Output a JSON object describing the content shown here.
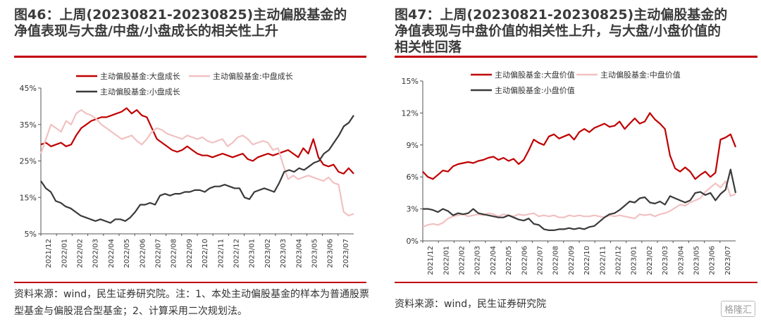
{
  "chart_data": [
    {
      "type": "line",
      "title": "图46：上周(20230821-20230825)主动偏股基金的\n净值表现与大盘/中盘/小盘成长的相关性上升",
      "note": "资料来源：wind，民生证券研究院。注：1、本处主动偏股基金的样本为普通股票型基金与偏股混合型基金；2、计算采用二次规划法。",
      "ylim": [
        5,
        45
      ],
      "yticks": [
        "5%",
        "15%",
        "25%",
        "35%",
        "45%"
      ],
      "ytick_values": [
        5,
        15,
        25,
        35,
        45
      ],
      "xticks": [
        "2021/12",
        "2022/01",
        "2022/02",
        "2022/03",
        "2022/04",
        "2022/05",
        "2022/06",
        "2022/07",
        "2022/08",
        "2022/09",
        "2022/10",
        "2022/11",
        "2022/12",
        "2023/01",
        "2023/02",
        "2023/03",
        "2023/04",
        "2023/05",
        "2023/06",
        "2023/07"
      ],
      "legend": "top",
      "series": [
        {
          "name": "主动偏股基金:大盘成长",
          "color": "#c00000",
          "values": [
            29.5,
            30,
            29,
            29.5,
            30,
            29,
            29.5,
            32,
            34,
            35,
            36,
            36.5,
            37,
            37,
            37.5,
            38,
            38.5,
            39.5,
            38,
            39,
            37.5,
            37,
            34,
            31,
            30,
            29,
            28,
            27.5,
            28,
            29,
            28,
            27,
            26.5,
            26.5,
            26,
            26.5,
            27,
            26.5,
            26,
            26.5,
            27,
            25.5,
            25,
            26,
            26.5,
            27,
            26.5,
            27,
            27.5,
            28,
            27,
            26,
            28.5,
            27,
            31,
            26,
            24,
            23.5,
            24,
            22,
            21.5,
            23,
            21.5
          ]
        },
        {
          "name": "主动偏股基金:中盘成长",
          "color": "#f2c1c1",
          "values": [
            27,
            31,
            35,
            34,
            33,
            36,
            35,
            38,
            39,
            38,
            37.5,
            36.5,
            35,
            34,
            33,
            32,
            31,
            31.5,
            32,
            30.5,
            29.5,
            31,
            33,
            34,
            33.5,
            32.5,
            32,
            31.5,
            31,
            32,
            31.5,
            31,
            31.5,
            30.5,
            30,
            30.5,
            31,
            29,
            30,
            31.5,
            32,
            31,
            29.5,
            30,
            30.5,
            30,
            28,
            28.5,
            24,
            20,
            21,
            20,
            20.5,
            21,
            20.5,
            20,
            19.5,
            20.5,
            19,
            18.5,
            11,
            10,
            10.5
          ]
        },
        {
          "name": "主动偏股基金:小盘成长",
          "color": "#3a3a3a",
          "values": [
            19.5,
            17.5,
            16.5,
            14,
            13.5,
            12.5,
            12,
            11,
            10,
            9.5,
            9,
            8.5,
            9,
            8.5,
            8,
            9,
            9,
            8.5,
            9.5,
            11,
            13,
            13,
            13.5,
            13,
            15.5,
            16,
            15.5,
            16,
            16,
            16.5,
            16.5,
            17,
            17,
            16.5,
            17.5,
            18,
            18,
            18.5,
            18,
            17.5,
            17.5,
            15,
            14.5,
            16.5,
            17,
            17.5,
            17,
            16.5,
            19,
            22,
            22.5,
            22,
            23,
            22.5,
            23.5,
            24.5,
            25,
            27,
            28,
            30,
            32,
            34.5,
            35.5,
            37.5
          ]
        }
      ]
    },
    {
      "type": "line",
      "title": "图47：上周(20230821-20230825)主动偏股基金的\n净值表现与中盘价值的相关性上升，与大盘/小盘价值的\n相关性回落",
      "note": "资料来源：wind，民生证券研究院",
      "ylim": [
        0,
        15
      ],
      "yticks": [
        "0%",
        "3%",
        "6%",
        "9%",
        "12%",
        "15%"
      ],
      "ytick_values": [
        0,
        3,
        6,
        9,
        12,
        15
      ],
      "xticks": [
        "2021/12",
        "2022/01",
        "2022/02",
        "2022/03",
        "2022/04",
        "2022/05",
        "2022/06",
        "2022/07",
        "2022/08",
        "2022/09",
        "2022/10",
        "2022/11",
        "2022/12",
        "2023/01",
        "2023/02",
        "2023/03",
        "2023/04",
        "2023/05",
        "2023/06",
        "2023/07"
      ],
      "legend": "top",
      "series": [
        {
          "name": "主动偏股基金:大盘价值",
          "color": "#c00000",
          "values": [
            6.5,
            6,
            5.8,
            6.2,
            6.6,
            6.5,
            7,
            7.2,
            7.3,
            7.4,
            7.3,
            7.5,
            7.6,
            7.8,
            7.9,
            7.6,
            7.8,
            7.5,
            7.7,
            7.2,
            7.6,
            8.5,
            9.5,
            9.2,
            9,
            9.8,
            10,
            9.6,
            9.8,
            10,
            9.5,
            10.2,
            10.5,
            10.2,
            10.6,
            10.8,
            11,
            10.7,
            10.8,
            11.2,
            10.5,
            11,
            11.5,
            11,
            11.2,
            12,
            11.4,
            11,
            10.5,
            8,
            6.8,
            6.5,
            6.9,
            6.5,
            5.8,
            6.2,
            6.5,
            6,
            6.4,
            9.5,
            9.7,
            10,
            8.8
          ]
        },
        {
          "name": "主动偏股基金:中盘价值",
          "color": "#f2c1c1",
          "values": [
            1.3,
            1.5,
            1.6,
            1.5,
            1.7,
            2.1,
            2.3,
            2.4,
            2.5,
            2.3,
            2.4,
            2.5,
            2.4,
            2.6,
            2.5,
            2.3,
            2.5,
            2.4,
            2.3,
            2.5,
            2.4,
            2.5,
            2.6,
            2.3,
            2.4,
            2.3,
            2.4,
            2.2,
            2.2,
            2.4,
            2.3,
            2.4,
            2.3,
            2.3,
            2.4,
            2.3,
            2.2,
            2.4,
            2.3,
            2.4,
            2.3,
            2.2,
            2.1,
            2.5,
            2.4,
            2.5,
            2.3,
            2.5,
            2.6,
            2.8,
            3.1,
            3.4,
            3.3,
            3.6,
            3.8,
            4,
            4.6,
            5,
            5.4,
            5,
            5.6,
            4.2,
            4.4
          ]
        },
        {
          "name": "主动偏股基金:小盘价值",
          "color": "#3a3a3a",
          "values": [
            3,
            3,
            2.9,
            2.7,
            3,
            2.8,
            2.4,
            2.6,
            2.5,
            2.6,
            3,
            2.6,
            2.5,
            2.4,
            2.3,
            2.2,
            2.2,
            2.4,
            2.2,
            2,
            1.9,
            2.1,
            1.6,
            1.5,
            1.1,
            1,
            1,
            1.1,
            1.1,
            1.2,
            1.1,
            1.2,
            1.1,
            1.3,
            1.4,
            1.8,
            2.2,
            2.5,
            2.6,
            2.9,
            3.3,
            3.7,
            3.6,
            4,
            4.1,
            3.6,
            3.5,
            3.7,
            3.4,
            4.2,
            4,
            3.8,
            3.6,
            3.8,
            4.5,
            4.6,
            4.3,
            4.5,
            3.8,
            4.4,
            4.8,
            6.7,
            4.5
          ]
        }
      ]
    }
  ],
  "watermark": "格隆汇"
}
